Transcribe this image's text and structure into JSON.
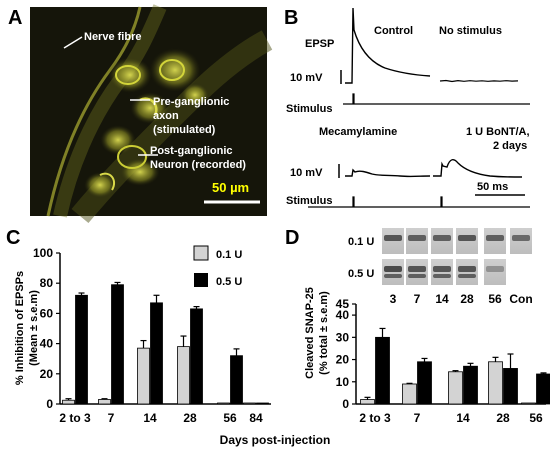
{
  "panel_letters": {
    "a": "A",
    "b": "B",
    "c": "C",
    "d": "D"
  },
  "panel_a": {
    "labels": {
      "nerve": "Nerve fibre",
      "pre1": "Pre-ganglionic",
      "pre2": "axon",
      "pre3": "(stimulated)",
      "post1": "Post-ganglionic",
      "post2": "Neuron (recorded)"
    },
    "scale_bar": "50 µm",
    "colors": {
      "background": "#141408",
      "fluorescence": "#e6ea3a",
      "scale_text": "#ffff00"
    }
  },
  "panel_b": {
    "epsp": "EPSP",
    "control": "Control",
    "no_stimulus": "No stimulus",
    "scale_mv_top": "10 mV",
    "stimulus_top": "Stimulus",
    "mecamylamine": "Mecamylamine",
    "bont_1": "1 U BoNT/A,",
    "bont_2": "2 days",
    "scale_mv_bottom": "10 mV",
    "stimulus_bottom": "Stimulus",
    "time_scale": "50 ms"
  },
  "chart_data": [
    {
      "panel": "C",
      "type": "bar",
      "categories": [
        "2 to 3",
        "7",
        "14",
        "28",
        "56",
        "84"
      ],
      "series": [
        {
          "name": "0.1 U",
          "color": "#d3d3d3",
          "values": [
            2.5,
            3,
            37,
            38,
            0,
            0
          ],
          "errors": [
            1,
            0.5,
            5,
            7,
            0,
            0
          ]
        },
        {
          "name": "0.5 U",
          "color": "#000000",
          "values": [
            72,
            79,
            67,
            63,
            32,
            0
          ],
          "errors": [
            1.5,
            1.5,
            5,
            1.5,
            4.5,
            0
          ]
        }
      ],
      "ylabel_line1": "% Inhibition of EPSPs",
      "ylabel_line2": "(Mean ± s.e.m)",
      "ylim": [
        0,
        100
      ],
      "yticks": [
        "0",
        "20",
        "40",
        "60",
        "80",
        "100"
      ]
    },
    {
      "panel": "D",
      "type": "bar",
      "categories": [
        "2 to 3",
        "7",
        "14",
        "28",
        "56"
      ],
      "series": [
        {
          "name": "0.1 U",
          "color": "#d3d3d3",
          "values": [
            2,
            9,
            14.5,
            19,
            0
          ],
          "errors": [
            1,
            0.3,
            0.5,
            2,
            0
          ]
        },
        {
          "name": "0.5 U",
          "color": "#000000",
          "values": [
            30,
            19,
            17,
            16,
            13.5
          ],
          "errors": [
            4,
            1.5,
            1.3,
            6.5,
            0.5
          ]
        }
      ],
      "ylabel_line1": "Cleaved SNAP-25",
      "ylabel_line2": "(% total ± s.e.m)",
      "ylim": [
        0,
        45
      ],
      "yticks": [
        "0",
        "10",
        "20",
        "30",
        "40",
        "45"
      ]
    }
  ],
  "shared_xlabel": "Days post-injection",
  "blot": {
    "row_labels": [
      "0.1 U",
      "0.5 U"
    ],
    "lane_labels": [
      "3",
      "7",
      "14",
      "28",
      "56",
      "Con"
    ]
  }
}
